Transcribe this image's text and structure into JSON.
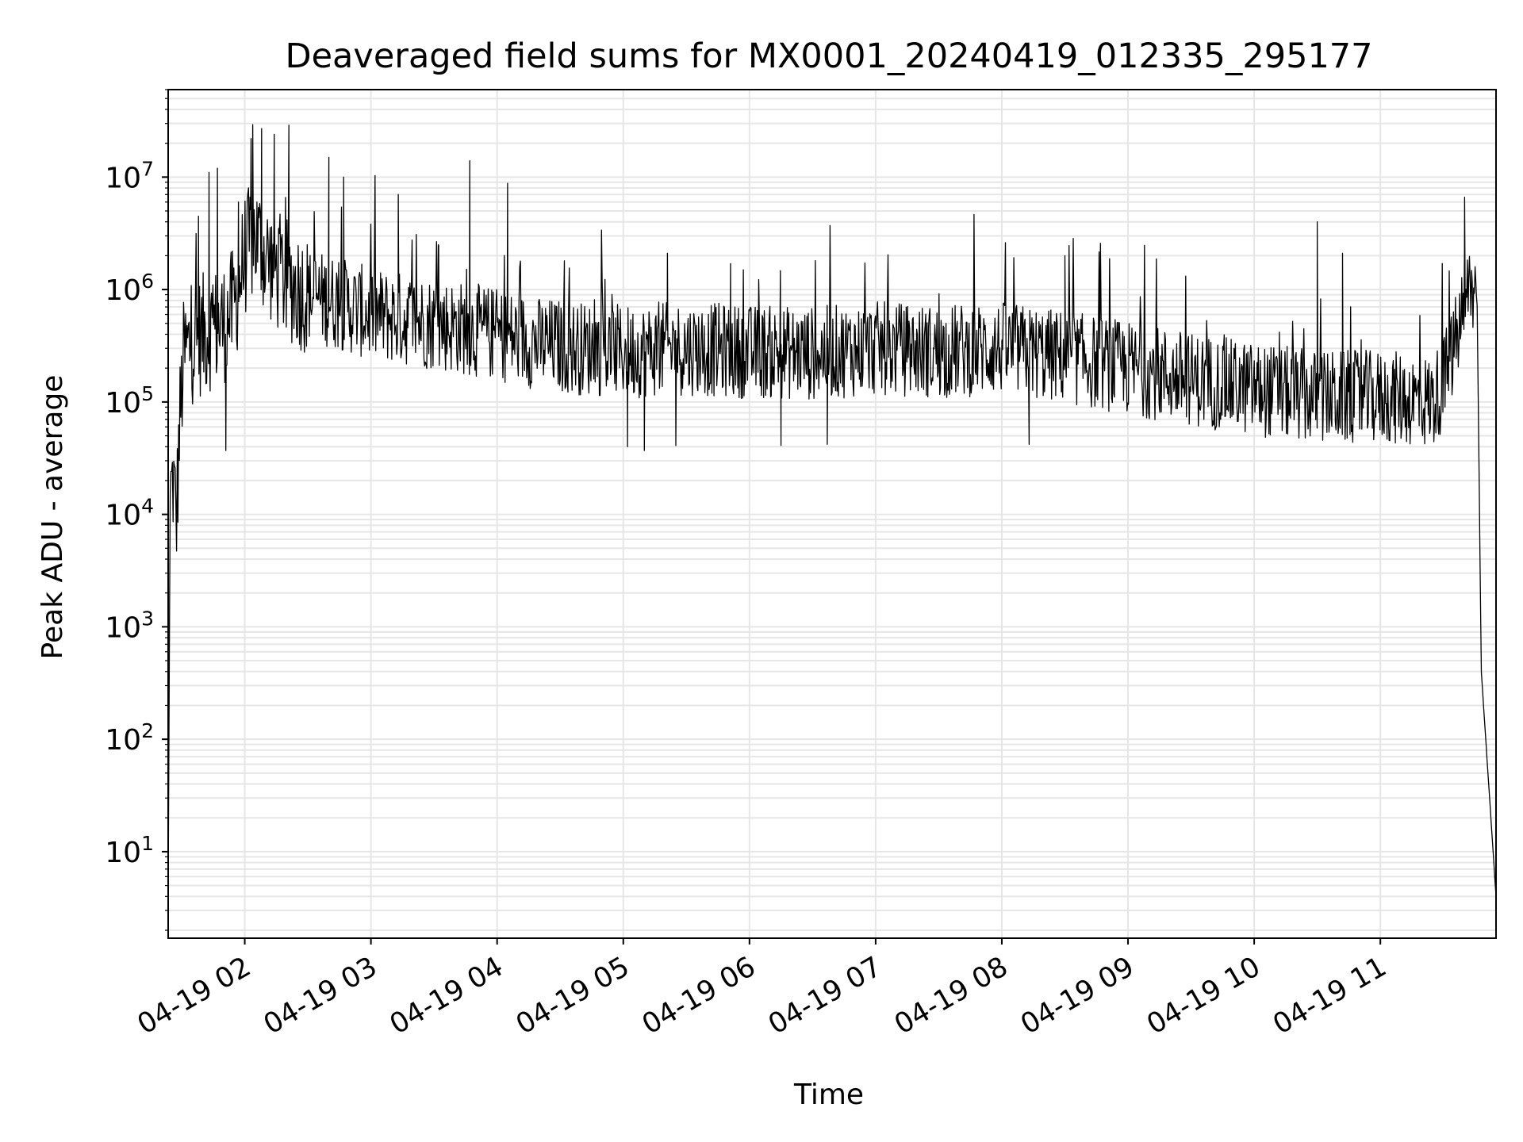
{
  "chart_data": {
    "type": "line",
    "title": "Deaveraged field sums for MX0001_20240419_012335_295177",
    "xlabel": "Time",
    "ylabel": "Peak ADU - average",
    "yscale": "log",
    "xlim": [
      "2024-04-19 01:23:35",
      "2024-04-19 11:55:00"
    ],
    "ylim": [
      1.7,
      60000000
    ],
    "x_ticks": [
      "2024-04-19 02:00",
      "2024-04-19 03:00",
      "2024-04-19 04:00",
      "2024-04-19 05:00",
      "2024-04-19 06:00",
      "2024-04-19 07:00",
      "2024-04-19 08:00",
      "2024-04-19 09:00",
      "2024-04-19 10:00",
      "2024-04-19 11:00"
    ],
    "x_tick_labels": [
      "04-19 02",
      "04-19 03",
      "04-19 04",
      "04-19 05",
      "04-19 06",
      "04-19 07",
      "04-19 08",
      "04-19 09",
      "04-19 10",
      "04-19 11"
    ],
    "y_ticks": [
      10,
      100,
      1000,
      10000,
      100000,
      1000000,
      10000000
    ],
    "y_tick_labels": [
      {
        "base": "10",
        "exp": "1"
      },
      {
        "base": "10",
        "exp": "2"
      },
      {
        "base": "10",
        "exp": "3"
      },
      {
        "base": "10",
        "exp": "4"
      },
      {
        "base": "10",
        "exp": "5"
      },
      {
        "base": "10",
        "exp": "6"
      },
      {
        "base": "10",
        "exp": "7"
      }
    ],
    "grid": true,
    "line_color": "#000000",
    "grid_color": "#e6e6e6",
    "series": [
      {
        "x": [
          "2024-04-19 01:23:35",
          "2024-04-19 01:24:30",
          "2024-04-19 01:26:00",
          "2024-04-19 01:27:30",
          "2024-04-19 01:29:00",
          "2024-04-19 01:31:00",
          "2024-04-19 01:33:00",
          "2024-04-19 01:36:00",
          "2024-04-19 01:40:00",
          "2024-04-19 01:45:00",
          "2024-04-19 01:50:00",
          "2024-04-19 01:55:00",
          "2024-04-19 02:00:00",
          "2024-04-19 02:05:00",
          "2024-04-19 02:10:00",
          "2024-04-19 02:15:00",
          "2024-04-19 02:20:00",
          "2024-04-19 02:30:00",
          "2024-04-19 02:40:00",
          "2024-04-19 02:50:00",
          "2024-04-19 03:00:00",
          "2024-04-19 03:15:00",
          "2024-04-19 03:30:00",
          "2024-04-19 03:45:00",
          "2024-04-19 04:00:00",
          "2024-04-19 04:20:00",
          "2024-04-19 04:40:00",
          "2024-04-19 05:00:00",
          "2024-04-19 05:30:00",
          "2024-04-19 06:00:00",
          "2024-04-19 06:30:00",
          "2024-04-19 07:00:00",
          "2024-04-19 07:30:00",
          "2024-04-19 08:00:00",
          "2024-04-19 08:30:00",
          "2024-04-19 09:00:00",
          "2024-04-19 09:30:00",
          "2024-04-19 10:00:00",
          "2024-04-19 10:30:00",
          "2024-04-19 11:00:00",
          "2024-04-19 11:15:00",
          "2024-04-19 11:25:00",
          "2024-04-19 11:30:00",
          "2024-04-19 11:35:00",
          "2024-04-19 11:40:00",
          "2024-04-19 11:43:00",
          "2024-04-19 11:46:00",
          "2024-04-19 11:48:00",
          "2024-04-19 11:55:00"
        ],
        "y": [
          4,
          15000,
          20000,
          9000,
          60000,
          250000,
          300000,
          350000,
          400000,
          450000,
          500000,
          700000,
          2000000,
          3000000,
          2000000,
          1500000,
          1200000,
          900000,
          800000,
          700000,
          600000,
          550000,
          500000,
          450000,
          400000,
          330000,
          300000,
          280000,
          300000,
          280000,
          270000,
          300000,
          280000,
          300000,
          250000,
          200000,
          160000,
          130000,
          110000,
          110000,
          105000,
          100000,
          150000,
          300000,
          700000,
          1100000,
          800000,
          400,
          4
        ],
        "peaks": [
          {
            "x": "2024-04-19 01:38:00",
            "y": 4500000
          },
          {
            "x": "2024-04-19 01:43:00",
            "y": 11000000
          },
          {
            "x": "2024-04-19 01:47:00",
            "y": 12000000
          },
          {
            "x": "2024-04-19 01:57:00",
            "y": 6000000
          },
          {
            "x": "2024-04-19 02:03:00",
            "y": 22000000
          },
          {
            "x": "2024-04-19 02:08:00",
            "y": 27000000
          },
          {
            "x": "2024-04-19 02:14:00",
            "y": 24000000
          },
          {
            "x": "2024-04-19 02:21:00",
            "y": 29000000
          },
          {
            "x": "2024-04-19 02:40:00",
            "y": 15000000
          },
          {
            "x": "2024-04-19 02:47:00",
            "y": 10000000
          },
          {
            "x": "2024-04-19 03:13:00",
            "y": 7000000
          },
          {
            "x": "2024-04-19 03:32:00",
            "y": 2500000
          },
          {
            "x": "2024-04-19 03:47:00",
            "y": 14000000
          },
          {
            "x": "2024-04-19 04:05:00",
            "y": 8800000
          },
          {
            "x": "2024-04-19 04:32:00",
            "y": 1800000
          },
          {
            "x": "2024-04-19 05:21:00",
            "y": 2100000
          },
          {
            "x": "2024-04-19 05:51:00",
            "y": 1700000
          },
          {
            "x": "2024-04-19 08:30:00",
            "y": 2000000
          },
          {
            "x": "2024-04-19 10:30:00",
            "y": 4000000
          },
          {
            "x": "2024-04-19 10:42:00",
            "y": 2100000
          },
          {
            "x": "2024-04-19 11:40:00",
            "y": 2100000
          }
        ],
        "dips": [
          {
            "x": "2024-04-19 01:51:00",
            "y": 37000
          },
          {
            "x": "2024-04-19 05:02:00",
            "y": 40000
          },
          {
            "x": "2024-04-19 05:10:00",
            "y": 37000
          },
          {
            "x": "2024-04-19 05:25:00",
            "y": 41000
          },
          {
            "x": "2024-04-19 06:15:00",
            "y": 41000
          },
          {
            "x": "2024-04-19 06:37:00",
            "y": 42000
          },
          {
            "x": "2024-04-19 08:13:00",
            "y": 42000
          }
        ]
      }
    ]
  }
}
